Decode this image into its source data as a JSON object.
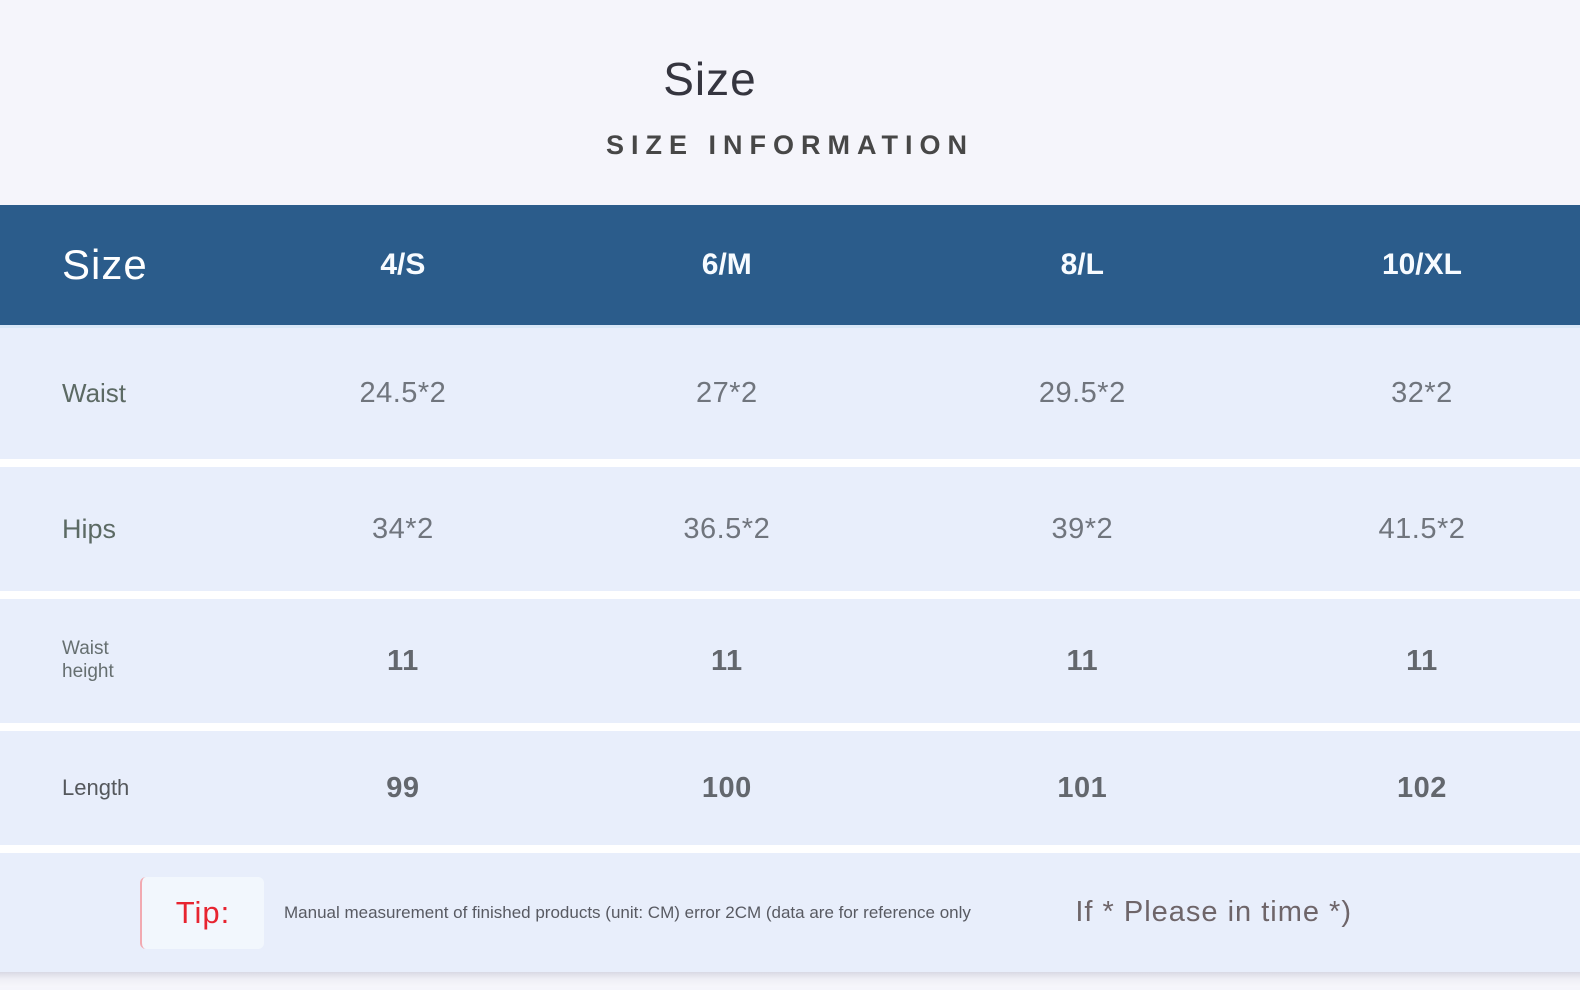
{
  "page": {
    "title": "Size",
    "subtitle": "SIZE INFORMATION"
  },
  "colors": {
    "page_bg": "#f5f5fb",
    "header_bg": "#2b5c8b",
    "header_text": "#ffffff",
    "row_bg": "#e8eefb",
    "tip_red": "#e72430"
  },
  "chart_data": {
    "type": "table",
    "title": "Size",
    "subtitle": "SIZE INFORMATION",
    "columns": [
      "Size",
      "4/S",
      "6/M",
      "8/L",
      "10/XL"
    ],
    "rows": [
      [
        "Waist",
        "24.5*2",
        "27*2",
        "29.5*2",
        "32*2"
      ],
      [
        "Hips",
        "34*2",
        "36.5*2",
        "39*2",
        "41.5*2"
      ],
      [
        "Waist height",
        "11",
        "11",
        "11",
        "11"
      ],
      [
        "Length",
        "99",
        "100",
        "101",
        "102"
      ]
    ],
    "footnote": "Tip: Manual measurement of finished products (unit: CM) error 2CM (data are for reference only | If * Please in time *)"
  },
  "size_table": {
    "header_label": "Size",
    "columns": [
      "4/S",
      "6/M",
      "8/L",
      "10/XL"
    ],
    "rows": [
      {
        "label": "Waist",
        "values": [
          "24.5*2",
          "27*2",
          "29.5*2",
          "32*2"
        ]
      },
      {
        "label": "Hips",
        "values": [
          "34*2",
          "36.5*2",
          "39*2",
          "41.5*2"
        ]
      },
      {
        "label": "Waist height",
        "values": [
          "11",
          "11",
          "11",
          "11"
        ]
      },
      {
        "label": "Length",
        "values": [
          "99",
          "100",
          "101",
          "102"
        ]
      }
    ]
  },
  "tip": {
    "label": "Tip:",
    "note": "Manual measurement of finished products (unit: CM) error 2CM (data are for reference only",
    "aside": "If * Please in time *)"
  }
}
